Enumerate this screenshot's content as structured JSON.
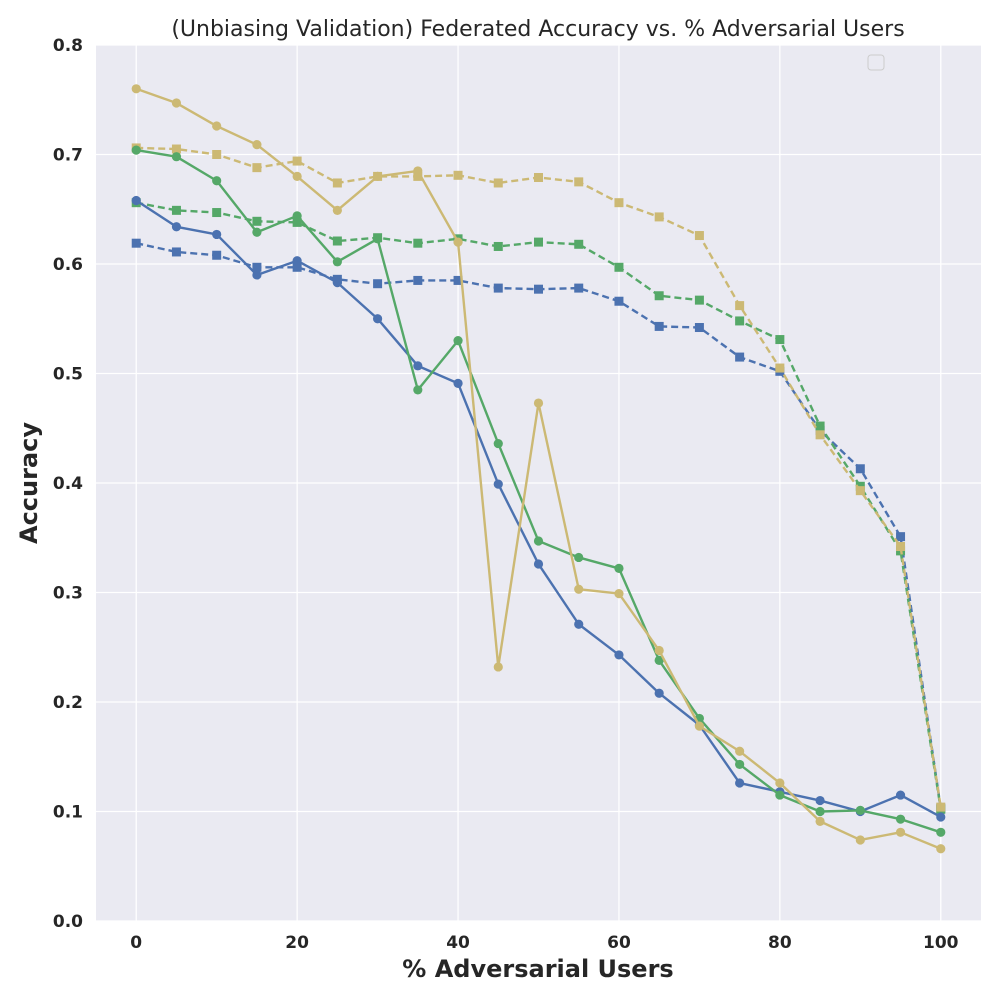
{
  "chart_data": {
    "type": "line",
    "title": "(Unbiasing Validation) Federated Accuracy vs. % Adversarial Users",
    "xlabel": "% Adversarial Users",
    "ylabel": "Accuracy",
    "xlim": [
      -5,
      105
    ],
    "ylim": [
      0.0,
      0.8
    ],
    "x_ticks": [
      "0",
      "20",
      "40",
      "60",
      "80",
      "100"
    ],
    "y_ticks": [
      "0.0",
      "0.1",
      "0.2",
      "0.3",
      "0.4",
      "0.5",
      "0.6",
      "0.7",
      "0.8"
    ],
    "grid": true,
    "legend": "upper-right (empty)",
    "x": [
      0,
      5,
      10,
      15,
      20,
      25,
      30,
      35,
      40,
      45,
      50,
      55,
      60,
      65,
      70,
      75,
      80,
      85,
      90,
      95,
      100
    ],
    "series": [
      {
        "color": "#4c72b0",
        "style": "solid",
        "marker": "circle",
        "values": [
          0.658,
          0.634,
          0.627,
          0.59,
          0.603,
          0.583,
          0.55,
          0.507,
          0.491,
          0.399,
          0.326,
          0.271,
          0.243,
          0.208,
          0.179,
          0.126,
          0.118,
          0.11,
          0.1,
          0.115,
          0.095
        ]
      },
      {
        "color": "#55a868",
        "style": "solid",
        "marker": "circle",
        "values": [
          0.704,
          0.698,
          0.676,
          0.629,
          0.644,
          0.602,
          0.623,
          0.485,
          0.53,
          0.436,
          0.347,
          0.332,
          0.322,
          0.238,
          0.185,
          0.143,
          0.115,
          0.1,
          0.101,
          0.093,
          0.081
        ]
      },
      {
        "color": "#ccb974",
        "style": "solid",
        "marker": "circle",
        "values": [
          0.76,
          0.747,
          0.726,
          0.709,
          0.68,
          0.649,
          0.68,
          0.685,
          0.62,
          0.232,
          0.473,
          0.303,
          0.299,
          0.247,
          0.178,
          0.155,
          0.126,
          0.091,
          0.074,
          0.081,
          0.066
        ]
      },
      {
        "color": "#4c72b0",
        "style": "dashed",
        "marker": "square",
        "values": [
          0.619,
          0.611,
          0.608,
          0.597,
          0.597,
          0.586,
          0.582,
          0.585,
          0.585,
          0.578,
          0.577,
          0.578,
          0.566,
          0.543,
          0.542,
          0.515,
          0.502,
          0.448,
          0.413,
          0.351,
          0.103
        ]
      },
      {
        "color": "#55a868",
        "style": "dashed",
        "marker": "square",
        "values": [
          0.656,
          0.649,
          0.647,
          0.639,
          0.638,
          0.621,
          0.624,
          0.619,
          0.623,
          0.616,
          0.62,
          0.618,
          0.597,
          0.571,
          0.567,
          0.548,
          0.531,
          0.452,
          0.397,
          0.338,
          0.102
        ]
      },
      {
        "color": "#ccb974",
        "style": "dashed",
        "marker": "square",
        "values": [
          0.706,
          0.705,
          0.7,
          0.688,
          0.694,
          0.674,
          0.68,
          0.68,
          0.681,
          0.674,
          0.679,
          0.675,
          0.656,
          0.643,
          0.626,
          0.562,
          0.505,
          0.444,
          0.393,
          0.342,
          0.104
        ]
      }
    ],
    "colors": {
      "plot_background": "#eaeaf2",
      "grid": "#ffffff",
      "text": "#262626"
    }
  }
}
